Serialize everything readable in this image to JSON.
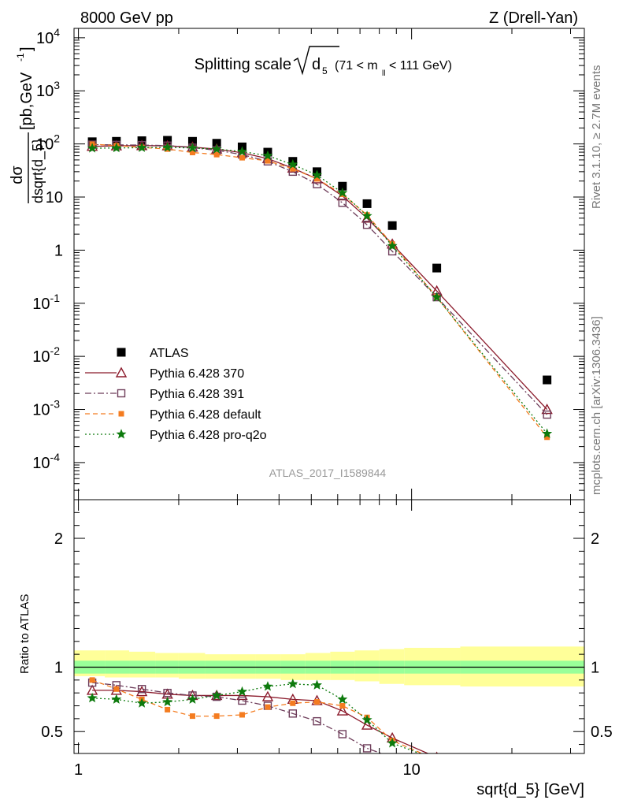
{
  "header": {
    "left": "8000 GeV pp",
    "right": "Z (Drell-Yan)"
  },
  "side_labels": {
    "rivet": "Rivet 3.1.10, ≥ 2.7M events",
    "mcplots": "mcplots.cern.ch [arXiv:1306.3436]"
  },
  "analysis_tag": "ATLAS_2017_I1589844",
  "chart_data": [
    {
      "type": "scatter",
      "panel": "main",
      "title": {
        "main": "Splitting scale",
        "root_arg": "d",
        "root_sub": "5",
        "range_text": "(71 < m",
        "range_sub": "ll",
        "range_end": " < 111 GeV)"
      },
      "ylabel": {
        "num": "dσ",
        "den": "dsqrt{d_5}",
        "units": "[pb,GeV",
        "units_sup": "-1",
        "units_end": "]"
      },
      "xscale": "log",
      "yscale": "log",
      "xlim": [
        0.97,
        33
      ],
      "ylim": [
        2e-05,
        15000
      ],
      "y_ticks": [
        {
          "v": 0.0001,
          "base": "10",
          "exp": "-4"
        },
        {
          "v": 0.001,
          "base": "10",
          "exp": "-3"
        },
        {
          "v": 0.01,
          "base": "10",
          "exp": "-2"
        },
        {
          "v": 0.1,
          "base": "10",
          "exp": "-1"
        },
        {
          "v": 1,
          "base": "1",
          "exp": ""
        },
        {
          "v": 10,
          "base": "10",
          "exp": ""
        },
        {
          "v": 100,
          "base": "10",
          "exp": "2"
        },
        {
          "v": 1000,
          "base": "10",
          "exp": "3"
        },
        {
          "v": 10000,
          "base": "10",
          "exp": "4"
        }
      ],
      "legend_position": "bottom-left",
      "x": [
        1.1,
        1.3,
        1.55,
        1.85,
        2.2,
        2.6,
        3.1,
        3.7,
        4.4,
        5.2,
        6.2,
        7.35,
        8.75,
        11.9,
        25.5
      ],
      "series": [
        {
          "name": "ATLAS",
          "marker": "square-filled",
          "color": "#000000",
          "line": "none",
          "values": [
            110,
            112,
            115,
            117,
            112,
            103,
            88,
            70,
            47,
            30,
            16,
            7.5,
            2.9,
            0.46,
            0.0036
          ]
        },
        {
          "name": "Pythia 6.428 370",
          "marker": "triangle-open",
          "color": "#8b1a2b",
          "line": "solid",
          "values": [
            90,
            92,
            93,
            92,
            87,
            80,
            68,
            53,
            35,
            22,
            10.5,
            4,
            1.3,
            0.17,
            0.001
          ]
        },
        {
          "name": "Pythia 6.428 391",
          "marker": "square-open",
          "color": "#6e3d5a",
          "line": "dashdot",
          "values": [
            97,
            96,
            95,
            93,
            85,
            76,
            63,
            47,
            30,
            17.5,
            7.8,
            3,
            0.95,
            0.13,
            0.0008
          ]
        },
        {
          "name": "Pythia 6.428 default",
          "marker": "square-filled-small",
          "color": "#f47c20",
          "line": "dashed",
          "values": [
            99,
            93,
            86,
            80,
            69,
            63,
            55,
            48,
            34,
            22,
            11.3,
            4.6,
            1.3,
            0.13,
            0.0003
          ]
        },
        {
          "name": "Pythia 6.428 pro-q2o",
          "marker": "star",
          "color": "#0d7a0d",
          "line": "dotted",
          "values": [
            83,
            84,
            85,
            86,
            84,
            80,
            72,
            60,
            41,
            26,
            12,
            4.4,
            1.2,
            0.13,
            0.00035
          ]
        }
      ]
    },
    {
      "type": "line",
      "panel": "ratio",
      "ylabel": "Ratio to ATLAS",
      "xlabel": "sqrt{d_5} [GeV]",
      "xscale": "log",
      "xlim": [
        0.97,
        33
      ],
      "ylim": [
        0.33,
        2.3
      ],
      "y_ticks": [
        0.5,
        1,
        2
      ],
      "x_ticks": [
        {
          "v": 1,
          "label": "1"
        },
        {
          "v": 10,
          "label": "10"
        }
      ],
      "bands": {
        "edges": [
          0.97,
          1.2,
          1.42,
          1.7,
          2.0,
          2.4,
          2.85,
          3.4,
          4.05,
          4.8,
          5.7,
          6.75,
          8.0,
          9.5,
          14.0,
          33
        ],
        "stat_sys_outer": [
          [
            0.93,
            1.13
          ],
          [
            0.92,
            1.13
          ],
          [
            0.92,
            1.12
          ],
          [
            0.92,
            1.11
          ],
          [
            0.91,
            1.11
          ],
          [
            0.91,
            1.1
          ],
          [
            0.91,
            1.1
          ],
          [
            0.91,
            1.1
          ],
          [
            0.9,
            1.1
          ],
          [
            0.9,
            1.11
          ],
          [
            0.9,
            1.12
          ],
          [
            0.89,
            1.13
          ],
          [
            0.87,
            1.14
          ],
          [
            0.86,
            1.15
          ],
          [
            0.85,
            1.16
          ],
          [
            0.33,
            1.93
          ]
        ],
        "stat_inner": [
          [
            0.95,
            1.05
          ],
          [
            0.95,
            1.05
          ],
          [
            0.95,
            1.05
          ],
          [
            0.95,
            1.05
          ],
          [
            0.95,
            1.05
          ],
          [
            0.95,
            1.05
          ],
          [
            0.95,
            1.05
          ],
          [
            0.95,
            1.05
          ],
          [
            0.95,
            1.05
          ],
          [
            0.95,
            1.05
          ],
          [
            0.95,
            1.05
          ],
          [
            0.95,
            1.05
          ],
          [
            0.95,
            1.05
          ],
          [
            0.95,
            1.05
          ],
          [
            0.95,
            1.05
          ],
          [
            0.55,
            1.55
          ]
        ],
        "colors": {
          "outer": "#ffff99",
          "inner": "#99ff99"
        }
      },
      "series": [
        {
          "name": "Pythia 6.428 370",
          "values": [
            0.82,
            0.82,
            0.81,
            0.79,
            0.78,
            0.78,
            0.78,
            0.77,
            0.75,
            0.74,
            0.66,
            0.55,
            0.45,
            0.3
          ]
        },
        {
          "name": "Pythia 6.428 391",
          "values": [
            0.88,
            0.86,
            0.83,
            0.8,
            0.78,
            0.77,
            0.74,
            0.7,
            0.64,
            0.58,
            0.48,
            0.37,
            0.3
          ]
        },
        {
          "name": "Pythia 6.428 default",
          "values": [
            0.9,
            0.83,
            0.75,
            0.67,
            0.62,
            0.62,
            0.63,
            0.69,
            0.72,
            0.73,
            0.7,
            0.61,
            0.43,
            0.28
          ]
        },
        {
          "name": "Pythia 6.428 pro-q2o",
          "values": [
            0.76,
            0.75,
            0.72,
            0.73,
            0.75,
            0.78,
            0.81,
            0.85,
            0.87,
            0.86,
            0.75,
            0.59,
            0.41,
            0.28
          ]
        }
      ]
    }
  ]
}
